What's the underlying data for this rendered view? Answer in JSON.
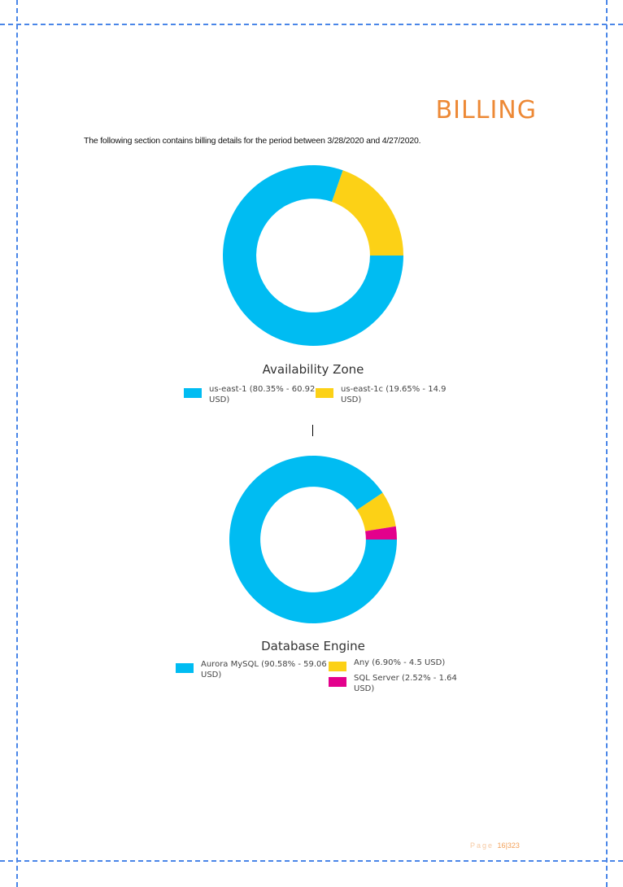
{
  "page": {
    "title": "BILLING",
    "intro": "The following section contains billing details for the period between 3/28/2020 and 4/27/2020.",
    "footer": {
      "word": "Page",
      "page_no": "16",
      "separator": "|",
      "total": "323"
    }
  },
  "chart_data": [
    {
      "type": "pie",
      "style": "donut",
      "title": "Availability Zone",
      "slices": [
        {
          "label": "us-east-1",
          "percent": 80.35,
          "value": 60.92,
          "color": "#00bcf2"
        },
        {
          "label": "us-east-1c",
          "percent": 19.65,
          "value": 14.9,
          "color": "#fcd116"
        }
      ],
      "legend": [
        {
          "line1": "us-east-1 (80.35% - 60.92",
          "line2": "USD)",
          "color": "#00bcf2"
        },
        {
          "line1": "us-east-1c (19.65% - 14.9",
          "line2": "USD)",
          "color": "#fcd116"
        }
      ],
      "legend_position": "bottom"
    },
    {
      "type": "pie",
      "style": "donut",
      "title": "Database Engine",
      "slices": [
        {
          "label": "Aurora MySQL",
          "percent": 90.58,
          "value": 59.06,
          "color": "#00bcf2"
        },
        {
          "label": "Any",
          "percent": 6.9,
          "value": 4.5,
          "color": "#fcd116"
        },
        {
          "label": "SQL Server",
          "percent": 2.52,
          "value": 1.64,
          "color": "#e3008c"
        }
      ],
      "legend": [
        {
          "line1": "Aurora MySQL (90.58% - 59.06",
          "line2": "USD)",
          "color": "#00bcf2"
        },
        {
          "line1": "Any (6.90% - 4.5 USD)",
          "line2": "",
          "color": "#fcd116"
        },
        {
          "line1": "SQL Server (2.52% - 1.64",
          "line2": "USD)",
          "color": "#e3008c"
        }
      ],
      "legend_position": "bottom"
    }
  ]
}
